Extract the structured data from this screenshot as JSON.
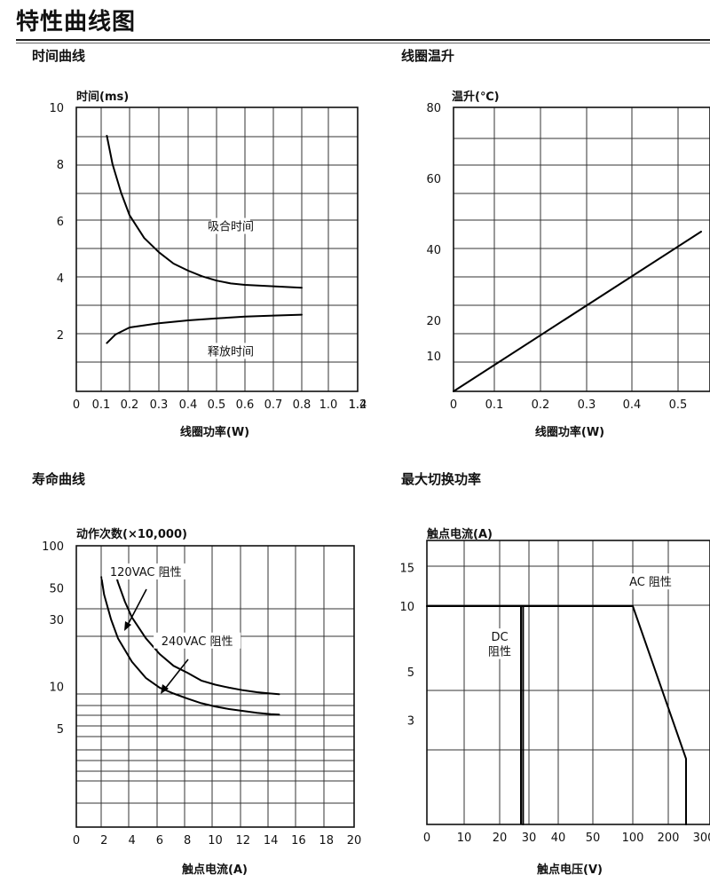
{
  "page": {
    "title": "特性曲线图"
  },
  "sections": {
    "time": "时间曲线",
    "temp": "线圈温升",
    "life": "寿命曲线",
    "switch": "最大切换功率"
  },
  "chart_data": [
    {
      "id": "time",
      "type": "line",
      "ylabel": "时间(ms)",
      "xlabel": "线圈功率(W)",
      "xlim": [
        0,
        1.4
      ],
      "ylim": [
        0,
        10
      ],
      "xticks": [
        0,
        0.1,
        0.2,
        0.3,
        0.4,
        0.5,
        0.6,
        0.7,
        0.8,
        0.9,
        1.0,
        1.2,
        1.4
      ],
      "xtick_labels": [
        "0",
        "0.1",
        "0.2",
        "0.3",
        "0.4",
        "0.5",
        "0.6",
        "0.7",
        "0.8",
        "0.9",
        "1.0",
        "1.2",
        "1.4"
      ],
      "yticks": [
        2,
        4,
        6,
        8,
        10
      ],
      "ytick_labels": [
        "2",
        "4",
        "6",
        "8",
        "10"
      ],
      "grid": true,
      "series": [
        {
          "name": "吸合时间",
          "x": [
            0.12,
            0.14,
            0.17,
            0.2,
            0.25,
            0.3,
            0.35,
            0.4,
            0.45,
            0.5,
            0.55,
            0.6,
            0.7,
            0.8,
            0.85
          ],
          "y": [
            9.0,
            8.0,
            7.0,
            6.2,
            5.4,
            4.9,
            4.5,
            4.25,
            4.05,
            3.9,
            3.8,
            3.75,
            3.7,
            3.65,
            3.65
          ]
        },
        {
          "name": "释放时间",
          "x": [
            0.12,
            0.15,
            0.2,
            0.3,
            0.4,
            0.5,
            0.6,
            0.7,
            0.8
          ],
          "y": [
            1.7,
            2.0,
            2.25,
            2.4,
            2.5,
            2.57,
            2.63,
            2.67,
            2.7
          ]
        }
      ],
      "annotations": [
        {
          "text": "吸合时间",
          "x": 0.55,
          "y": 5.7
        },
        {
          "text": "释放时间",
          "x": 0.55,
          "y": 1.3
        }
      ]
    },
    {
      "id": "temp",
      "type": "line",
      "ylabel": "温升(℃)",
      "xlabel": "线圈功率(W)",
      "xlim": [
        0,
        0.55
      ],
      "ylim": [
        0,
        80
      ],
      "xticks": [
        0,
        0.1,
        0.2,
        0.3,
        0.4,
        0.5
      ],
      "xtick_labels": [
        "0",
        "0.1",
        "0.2",
        "0.3",
        "0.4",
        "0.5"
      ],
      "yticks": [
        10,
        20,
        40,
        60,
        80
      ],
      "ytick_labels": [
        "10",
        "20",
        "40",
        "60",
        "80"
      ],
      "grid": true,
      "series": [
        {
          "name": "",
          "x": [
            0,
            0.55
          ],
          "y": [
            0,
            45
          ]
        }
      ]
    },
    {
      "id": "life",
      "type": "line",
      "ylabel": "动作次数(×10,000)",
      "xlabel": "触点电流(A)",
      "xlim": [
        0,
        20
      ],
      "ylim": [
        1,
        100
      ],
      "yscale": "log",
      "xticks": [
        0,
        2,
        4,
        6,
        8,
        10,
        12,
        14,
        16,
        18,
        20
      ],
      "xtick_labels": [
        "0",
        "2",
        "4",
        "6",
        "8",
        "10",
        "12",
        "14",
        "16",
        "18",
        "20"
      ],
      "yticks": [
        5,
        10,
        30,
        50,
        100
      ],
      "ytick_labels": [
        "5",
        "10",
        "30",
        "50",
        "100"
      ],
      "grid": true,
      "series": [
        {
          "name": "120VAC 阻性",
          "x": [
            2.7,
            3.0,
            3.5,
            4.0,
            5.0,
            6.0,
            7.0,
            8.0,
            9.0,
            10.0,
            11.0,
            12.0,
            13.0,
            14.0,
            14.6
          ],
          "y": [
            70,
            55,
            40,
            31,
            22,
            17,
            14,
            12.5,
            11,
            10.3,
            9.8,
            9.4,
            9.1,
            8.9,
            8.8
          ]
        },
        {
          "name": "240VAC 阻性",
          "x": [
            1.8,
            2.0,
            2.5,
            3.0,
            4.0,
            5.0,
            6.0,
            7.0,
            8.0,
            9.0,
            10.0,
            11.0,
            12.0,
            13.0,
            14.0,
            14.6
          ],
          "y": [
            60,
            45,
            30,
            22,
            15,
            11.5,
            9.8,
            8.9,
            8.2,
            7.6,
            7.2,
            6.9,
            6.7,
            6.5,
            6.35,
            6.3
          ]
        }
      ],
      "annotations": [
        {
          "text": "120VAC  阻性",
          "x": 5.0,
          "y": 62
        },
        {
          "text": "240VAC  阻性",
          "x": 8.7,
          "y": 20
        }
      ]
    },
    {
      "id": "switch",
      "type": "line",
      "ylabel": "触点电流(A)",
      "xlabel": "触点电压(V)",
      "xlim": [
        0,
        300
      ],
      "ylim": [
        1,
        20
      ],
      "yscale": "log",
      "xticks": [
        0,
        10,
        20,
        30,
        40,
        50,
        100,
        200,
        300
      ],
      "xtick_labels": [
        "0",
        "10",
        "20",
        "30",
        "40",
        "50",
        "100",
        "200",
        "300"
      ],
      "yticks": [
        3,
        5,
        10,
        15
      ],
      "ytick_labels": [
        "3",
        "5",
        "10",
        "15"
      ],
      "grid": true,
      "series": [
        {
          "name": "DC 阻性",
          "x": [
            0,
            28,
            28
          ],
          "y": [
            10,
            10,
            1
          ]
        },
        {
          "name": "AC 阻性",
          "x": [
            0,
            100,
            250,
            250
          ],
          "y": [
            10,
            10,
            2.0,
            1
          ]
        }
      ],
      "annotations": [
        {
          "text": "AC  阻性",
          "x": 150,
          "y": 12.5
        },
        {
          "text": "DC",
          "x": 20,
          "y": 7
        },
        {
          "text": "阻性",
          "x": 20,
          "y": 6
        }
      ]
    }
  ]
}
